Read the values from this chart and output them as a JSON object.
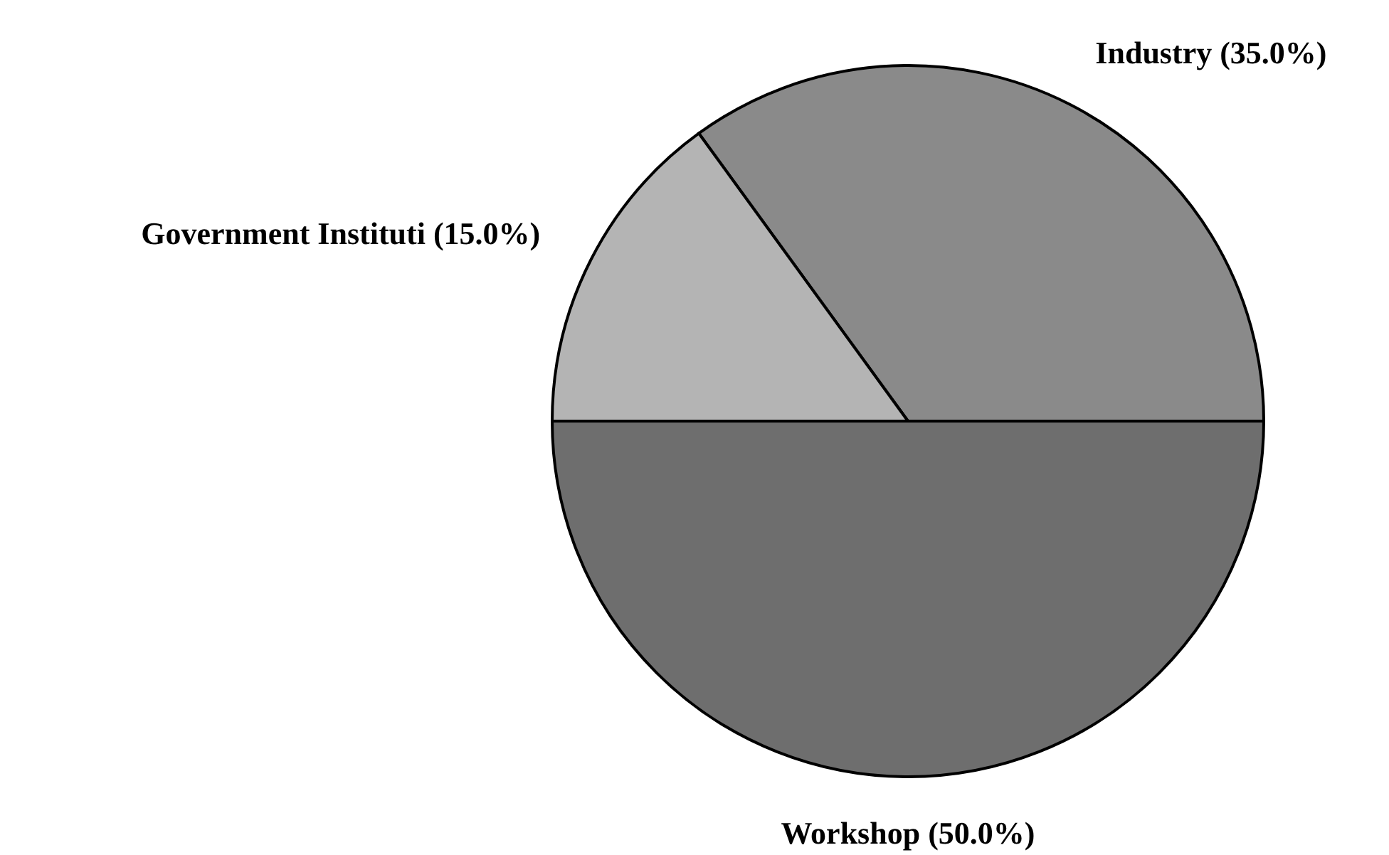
{
  "chart_data": {
    "type": "pie",
    "categories": [
      "Industry",
      "Workshop",
      "Government Instituti"
    ],
    "values": [
      35,
      50,
      15
    ],
    "colors": [
      "#8a8a8a",
      "#6e6e6e",
      "#b4b4b4"
    ],
    "value_labels": [
      "(35.0%)",
      "(50.0%)",
      "(15.0%)"
    ]
  }
}
